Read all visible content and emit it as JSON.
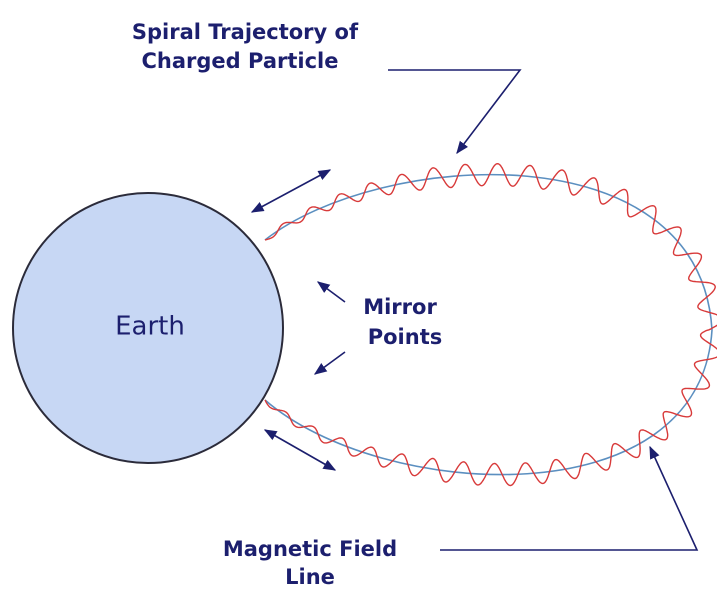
{
  "labels": {
    "trajectory": [
      "Spiral Trajectory of",
      "Charged Particle"
    ],
    "earth": "Earth",
    "mirror": [
      "Mirror",
      "Points"
    ],
    "field_line": [
      "Magnetic Field",
      "Line"
    ]
  }
}
